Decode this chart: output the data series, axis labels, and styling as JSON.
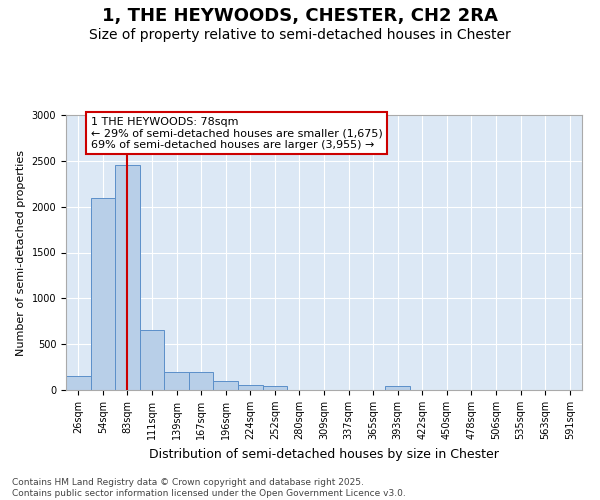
{
  "title": "1, THE HEYWOODS, CHESTER, CH2 2RA",
  "subtitle": "Size of property relative to semi-detached houses in Chester",
  "xlabel": "Distribution of semi-detached houses by size in Chester",
  "ylabel": "Number of semi-detached properties",
  "property_label": "1 THE HEYWOODS: 78sqm",
  "annotation_smaller": "← 29% of semi-detached houses are smaller (1,675)",
  "annotation_larger": "69% of semi-detached houses are larger (3,955) →",
  "bin_labels": [
    "26sqm",
    "54sqm",
    "83sqm",
    "111sqm",
    "139sqm",
    "167sqm",
    "196sqm",
    "224sqm",
    "252sqm",
    "280sqm",
    "309sqm",
    "337sqm",
    "365sqm",
    "393sqm",
    "422sqm",
    "450sqm",
    "478sqm",
    "506sqm",
    "535sqm",
    "563sqm",
    "591sqm"
  ],
  "counts": [
    150,
    2100,
    2450,
    650,
    200,
    200,
    100,
    60,
    40,
    0,
    0,
    0,
    0,
    40,
    0,
    0,
    0,
    0,
    0,
    0,
    0
  ],
  "bar_color": "#b8cfe8",
  "bar_edge_color": "#5b8fc9",
  "vline_color": "#cc0000",
  "vline_x_bin": 2,
  "annotation_box_edge_color": "#cc0000",
  "background_color": "#dce8f5",
  "ylim": [
    0,
    3000
  ],
  "yticks": [
    0,
    500,
    1000,
    1500,
    2000,
    2500,
    3000
  ],
  "footer": "Contains HM Land Registry data © Crown copyright and database right 2025.\nContains public sector information licensed under the Open Government Licence v3.0.",
  "title_fontsize": 13,
  "subtitle_fontsize": 10,
  "xlabel_fontsize": 9,
  "ylabel_fontsize": 8,
  "tick_fontsize": 7,
  "annotation_fontsize": 8,
  "footer_fontsize": 6.5
}
